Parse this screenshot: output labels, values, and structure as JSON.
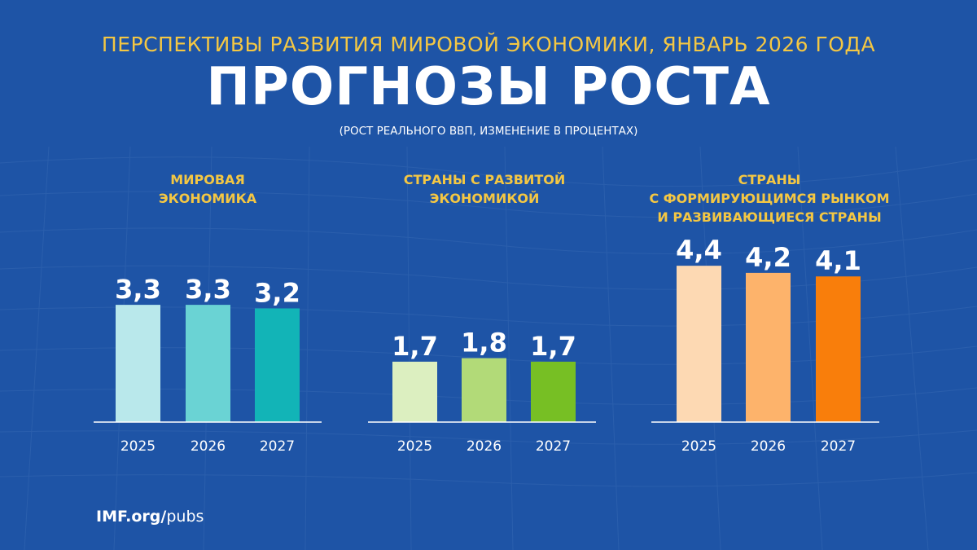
{
  "header": {
    "supertitle": "ПЕРСПЕКТИВЫ РАЗВИТИЯ МИРОВОЙ ЭКОНОМИКИ, ЯНВАРЬ 2026 ГОДА",
    "title": "ПРОГНОЗЫ РОСТА",
    "subtitle": "(РОСТ РЕАЛЬНОГО ВВП, ИЗМЕНЕНИЕ В ПРОЦЕНТАХ)"
  },
  "chart_data": [
    {
      "type": "bar",
      "title_lines": [
        "МИРОВАЯ",
        "ЭКОНОМИКА"
      ],
      "categories": [
        "2025",
        "2026",
        "2027"
      ],
      "values": [
        3.3,
        3.3,
        3.2
      ],
      "labels": [
        "3,3",
        "3,3",
        "3,2"
      ],
      "colors": [
        "#b9e8eb",
        "#6ad3d4",
        "#12b4b7"
      ]
    },
    {
      "type": "bar",
      "title_lines": [
        "СТРАНЫ С РАЗВИТОЙ",
        "ЭКОНОМИКОЙ"
      ],
      "categories": [
        "2025",
        "2026",
        "2027"
      ],
      "values": [
        1.7,
        1.8,
        1.7
      ],
      "labels": [
        "1,7",
        "1,8",
        "1,7"
      ],
      "colors": [
        "#dcefc0",
        "#b2da78",
        "#77bf24"
      ]
    },
    {
      "type": "bar",
      "title_lines": [
        "СТРАНЫ",
        "С ФОРМИРУЮЩИМСЯ РЫНКОМ",
        "И РАЗВИВАЮЩИЕСЯ СТРАНЫ"
      ],
      "categories": [
        "2025",
        "2026",
        "2027"
      ],
      "values": [
        4.4,
        4.2,
        4.1
      ],
      "labels": [
        "4,4",
        "4,2",
        "4,1"
      ],
      "colors": [
        "#fdd9b3",
        "#fdb36b",
        "#f97e0b"
      ]
    }
  ],
  "footer": {
    "bold": "IMF.org/",
    "regular": "pubs"
  }
}
